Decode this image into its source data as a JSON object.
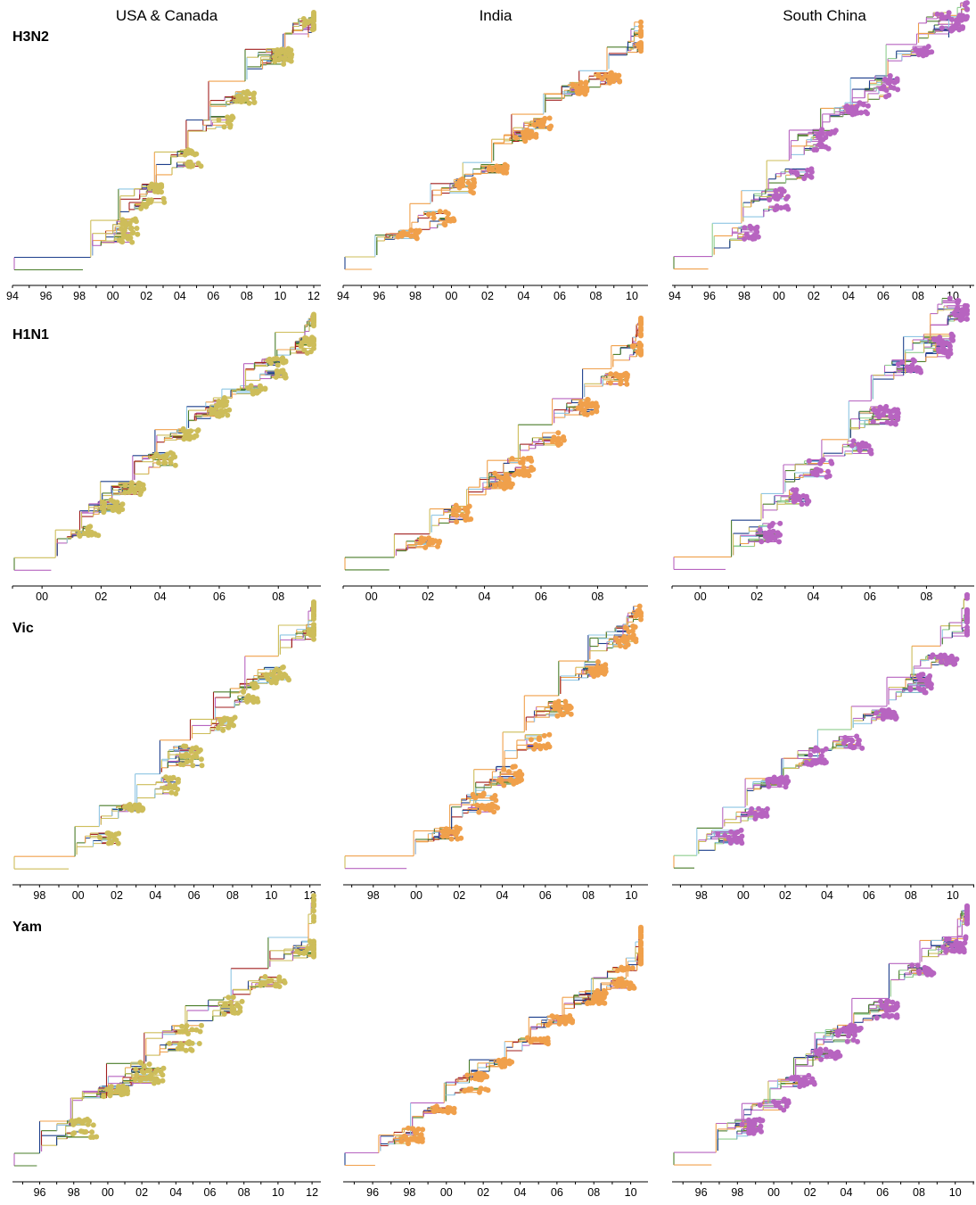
{
  "column_titles": [
    "USA & Canada",
    "India",
    "South China"
  ],
  "rows": [
    {
      "label": "H3N2",
      "ticks": [
        "94",
        "96",
        "98",
        "00",
        "02",
        "04",
        "06",
        "08",
        "10",
        "12"
      ],
      "tick_years": [
        1994,
        1996,
        1998,
        2000,
        2002,
        2004,
        2006,
        2008,
        2010,
        2012
      ]
    },
    {
      "label": "H1N1",
      "ticks": [
        "00",
        "02",
        "04",
        "06",
        "08"
      ],
      "tick_years": [
        2000,
        2002,
        2004,
        2006,
        2008
      ]
    },
    {
      "label": "Vic",
      "ticks": [
        "98",
        "00",
        "02",
        "04",
        "06",
        "08",
        "10",
        "12"
      ],
      "tick_years": [
        1998,
        2000,
        2002,
        2004,
        2006,
        2008,
        2010,
        2012
      ]
    },
    {
      "label": "Yam",
      "ticks": [
        "96",
        "98",
        "00",
        "02",
        "04",
        "06",
        "08",
        "10",
        "12"
      ],
      "tick_years": [
        1996,
        1998,
        2000,
        2002,
        2004,
        2006,
        2008,
        2010,
        2012
      ]
    }
  ],
  "region_tip_colors": {
    "USA & Canada": "#cdbd5a",
    "India": "#f0a04b",
    "South China": "#b764c0"
  },
  "branch_colors": [
    "#cdbd5a",
    "#f0a04b",
    "#b764c0",
    "#8ec6e3",
    "#1d3f8c",
    "#4a7d2a",
    "#a11f1f",
    "#8fce8f"
  ]
}
